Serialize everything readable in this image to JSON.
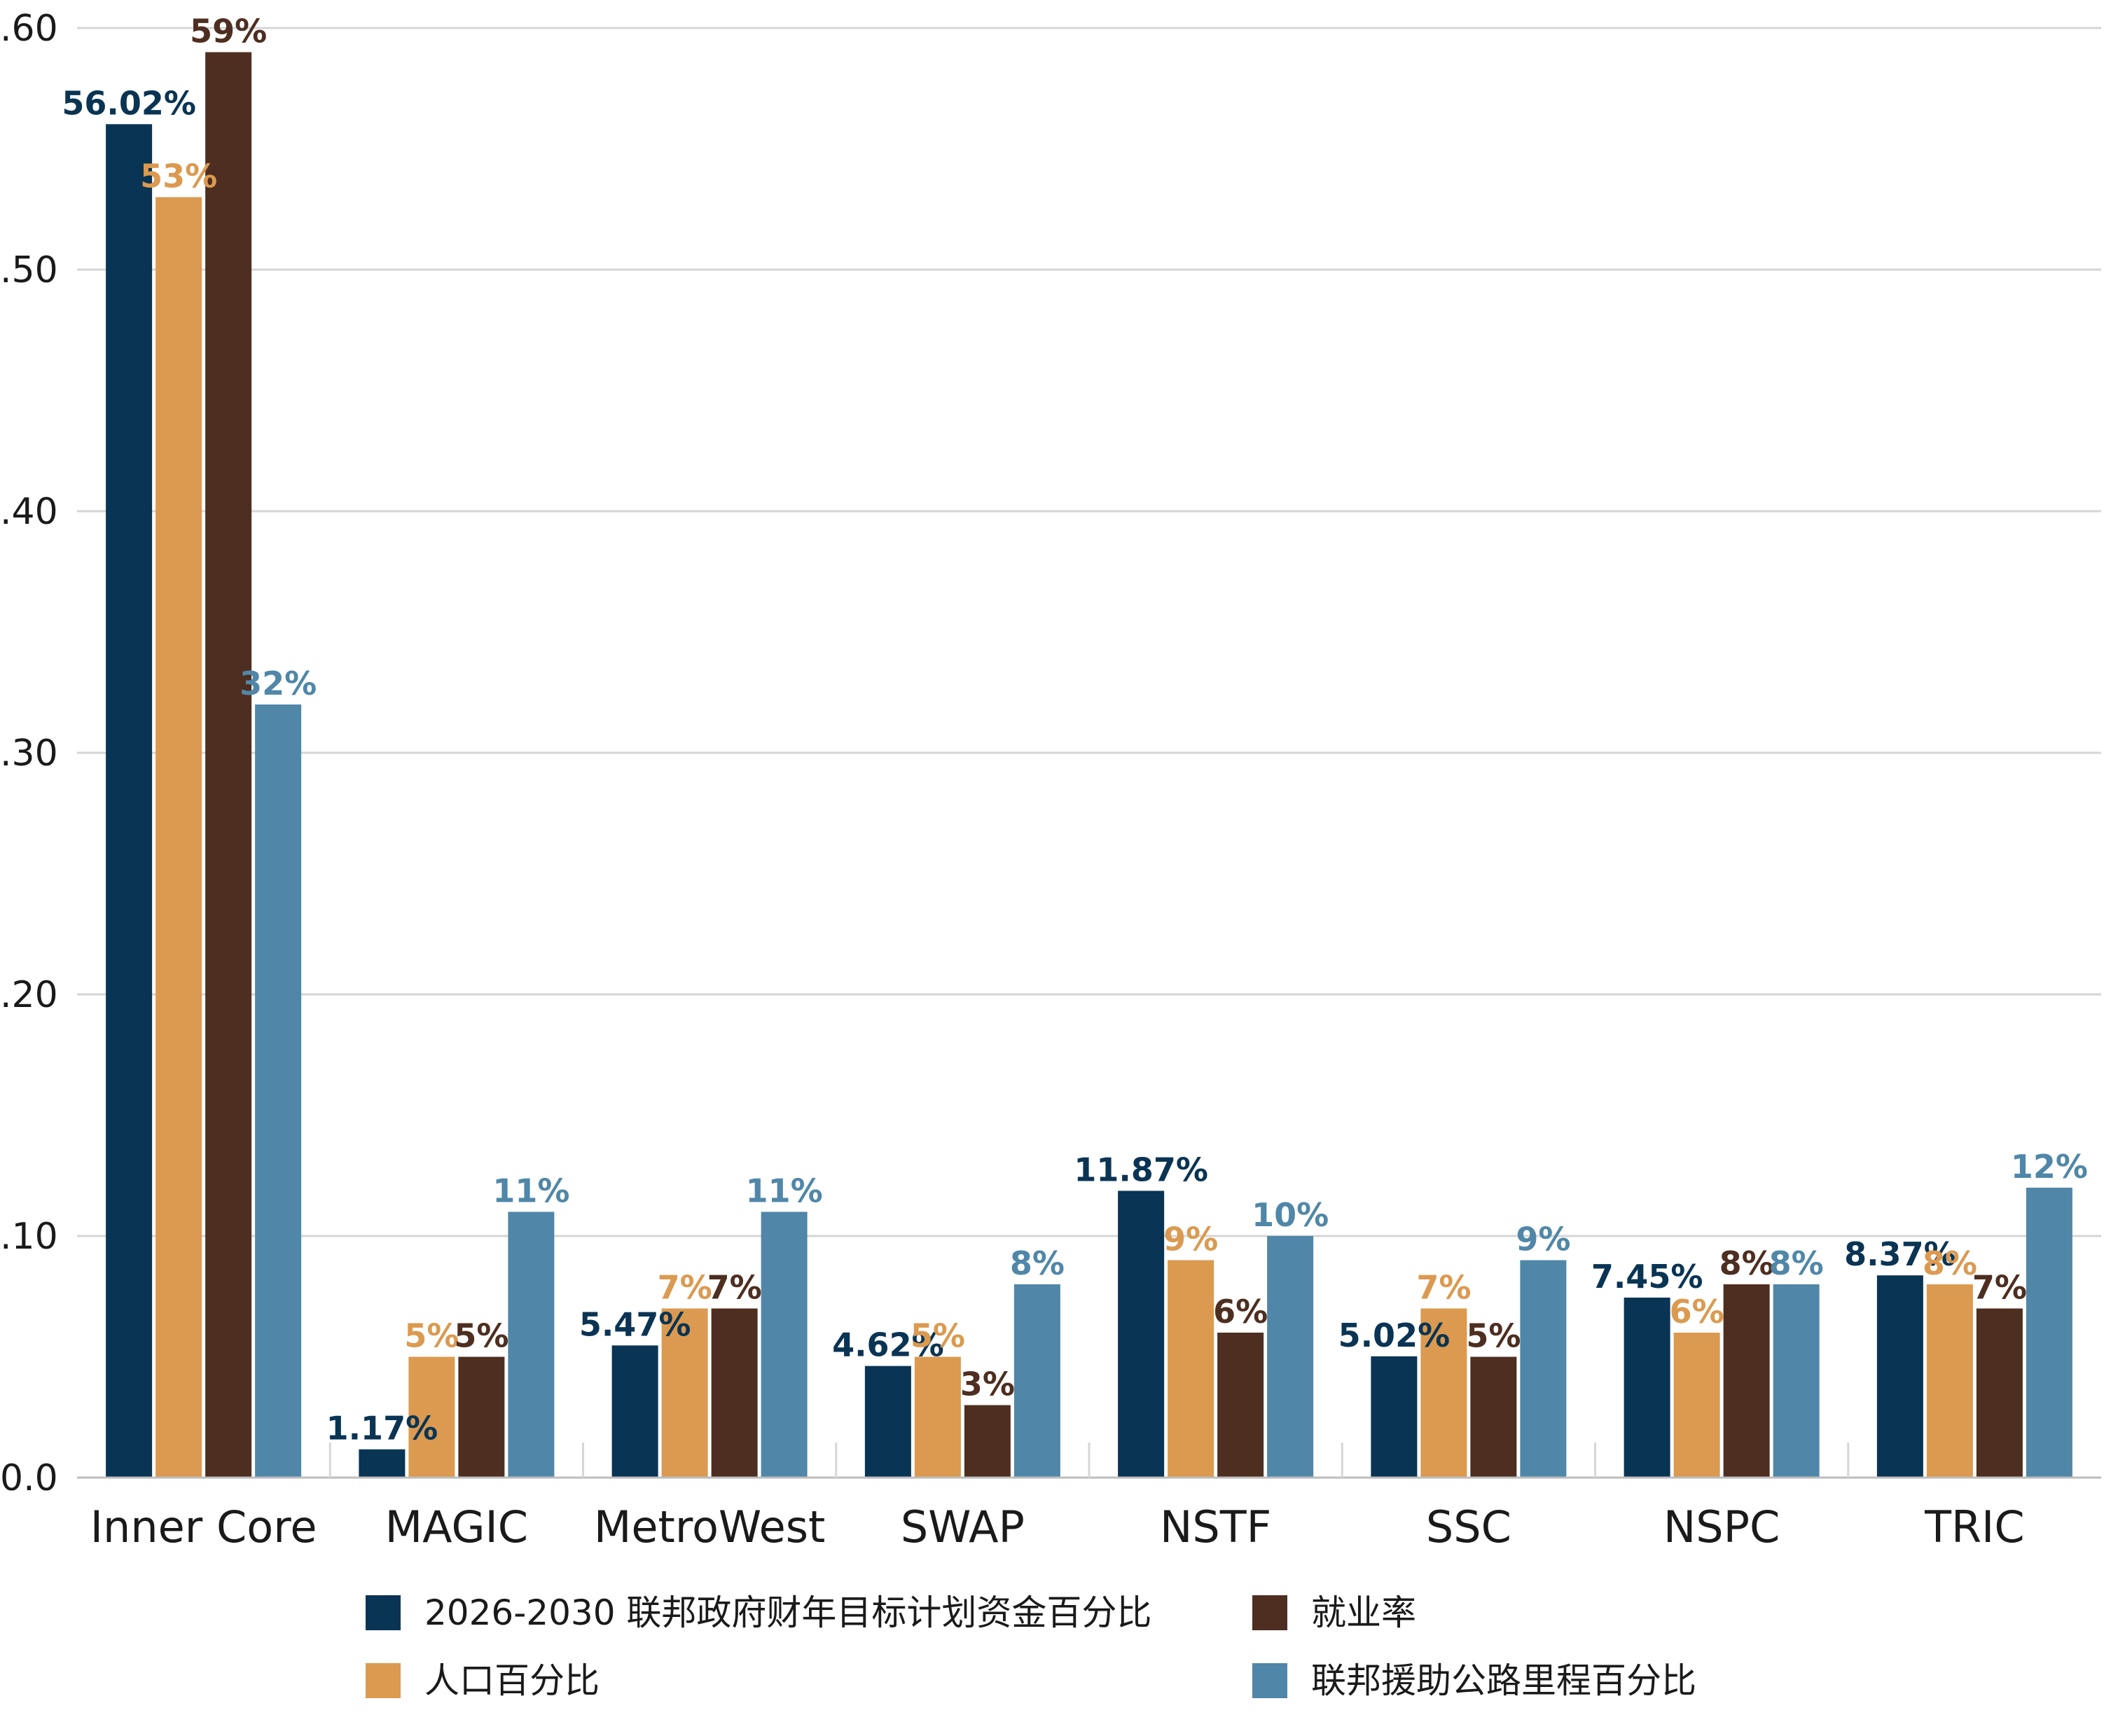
{
  "chart_data": {
    "type": "bar",
    "categories": [
      "Inner Core",
      "MAGIC",
      "MetroWest",
      "SWAP",
      "NSTF",
      "SSC",
      "NSPC",
      "TRIC"
    ],
    "series": [
      {
        "name": "2026-2030 联邦政府财年目标计划资金百分比",
        "color": "#0a3454",
        "values": [
          0.5602,
          0.0117,
          0.0547,
          0.0462,
          0.1187,
          0.0502,
          0.0745,
          0.0837
        ],
        "labels": [
          "56.02%",
          "1.17%",
          "5.47%",
          "4.62%",
          "11.87%",
          "5.02%",
          "7.45%",
          "8.37%"
        ]
      },
      {
        "name": "人口百分比",
        "color": "#db9a50",
        "values": [
          0.53,
          0.05,
          0.07,
          0.05,
          0.09,
          0.07,
          0.06,
          0.08
        ],
        "labels": [
          "53%",
          "5%",
          "7%",
          "5%",
          "9%",
          "7%",
          "6%",
          "8%"
        ]
      },
      {
        "name": "就业率",
        "color": "#4e2e20",
        "values": [
          0.59,
          0.05,
          0.07,
          0.03,
          0.06,
          0.05,
          0.08,
          0.07
        ],
        "labels": [
          "59%",
          "5%",
          "7%",
          "3%",
          "6%",
          "5%",
          "8%",
          "7%"
        ]
      },
      {
        "name": "联邦援助公路里程百分比",
        "color": "#5087a8",
        "values": [
          0.32,
          0.11,
          0.11,
          0.08,
          0.1,
          0.09,
          0.08,
          0.12
        ],
        "labels": [
          "32%",
          "11%",
          "11%",
          "8%",
          "10%",
          "9%",
          "8%",
          "12%"
        ]
      }
    ],
    "yticks": [
      ".60",
      ".50",
      ".40",
      ".30",
      ".20",
      ".10",
      "0.0"
    ],
    "ylim": [
      0,
      0.6
    ],
    "grid": true,
    "legend_position": "bottom",
    "title": "",
    "xlabel": "",
    "ylabel": ""
  }
}
